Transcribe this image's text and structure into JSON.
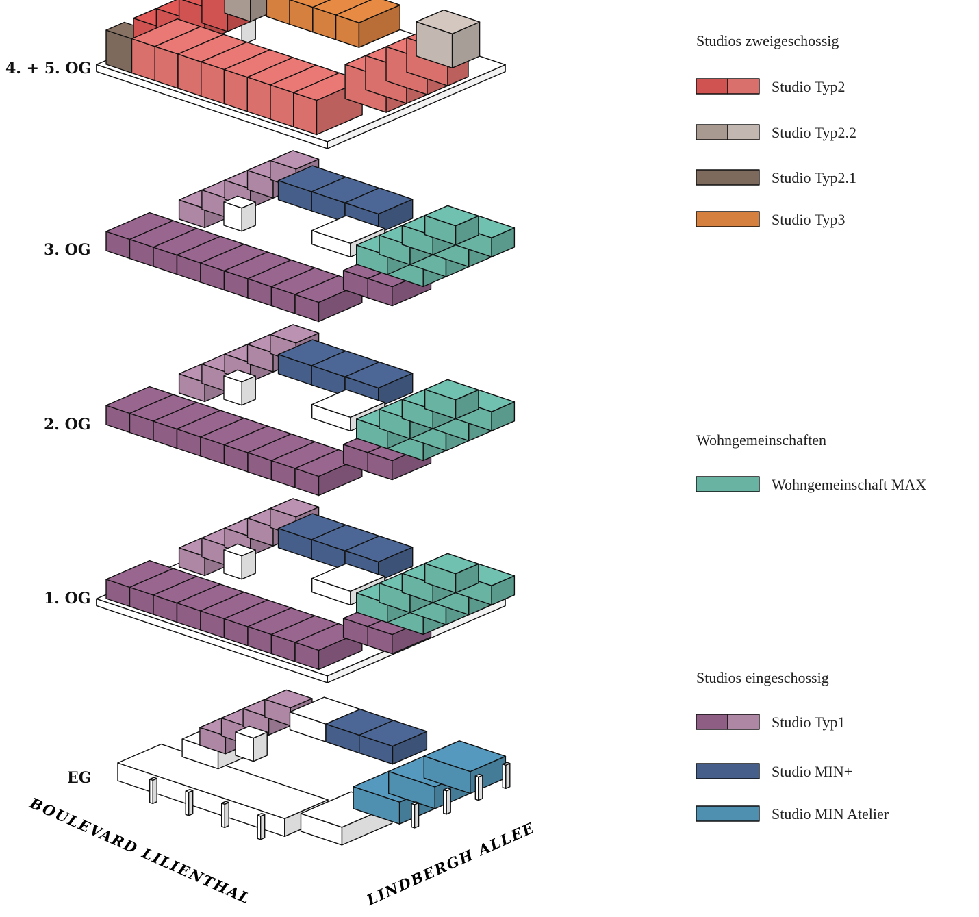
{
  "floors": [
    {
      "label": "4. + 5. OG"
    },
    {
      "label": "3. OG"
    },
    {
      "label": "2. OG"
    },
    {
      "label": "1. OG"
    },
    {
      "label": "EG"
    }
  ],
  "streets": {
    "left": "BOULEVARD LILIENTHAL",
    "right": "LINDBERGH ALLEE"
  },
  "legend": {
    "studios_two_storey": {
      "heading": "Studios zweigeschossig",
      "items": [
        {
          "label": "Studio Typ2",
          "colors": [
            "#d05251",
            "#d9706c"
          ]
        },
        {
          "label": "Studio Typ2.2",
          "colors": [
            "#a89a90",
            "#c3b8b1"
          ]
        },
        {
          "label": "Studio Typ2.1",
          "colors": [
            "#7d6a5c"
          ]
        },
        {
          "label": "Studio Typ3",
          "colors": [
            "#d6803f"
          ]
        }
      ]
    },
    "shared_flats": {
      "heading": "Wohngemeinschaften",
      "items": [
        {
          "label": "Wohngemeinschaft MAX",
          "colors": [
            "#69b3a3"
          ]
        }
      ]
    },
    "studios_one_storey": {
      "heading": "Studios eingeschossig",
      "items": [
        {
          "label": "Studio Typ1",
          "colors": [
            "#8e5e84",
            "#ad87a4"
          ]
        },
        {
          "label": "Studio MIN+",
          "colors": [
            "#465f8a"
          ]
        },
        {
          "label": "Studio MIN Atelier",
          "colors": [
            "#4f8fb0"
          ]
        }
      ]
    }
  },
  "colors": {
    "typ1_dark": "#8e5e84",
    "typ1_light": "#ad87a4",
    "min_plus": "#465f8a",
    "wg_max": "#69b3a3",
    "min_atelier": "#4f8fb0",
    "typ2": "#d9706c",
    "typ2_dark": "#d05251",
    "typ22": "#c3b8b1",
    "typ22_dark": "#a89a90",
    "typ21": "#7d6a5c",
    "typ3": "#d6803f"
  }
}
